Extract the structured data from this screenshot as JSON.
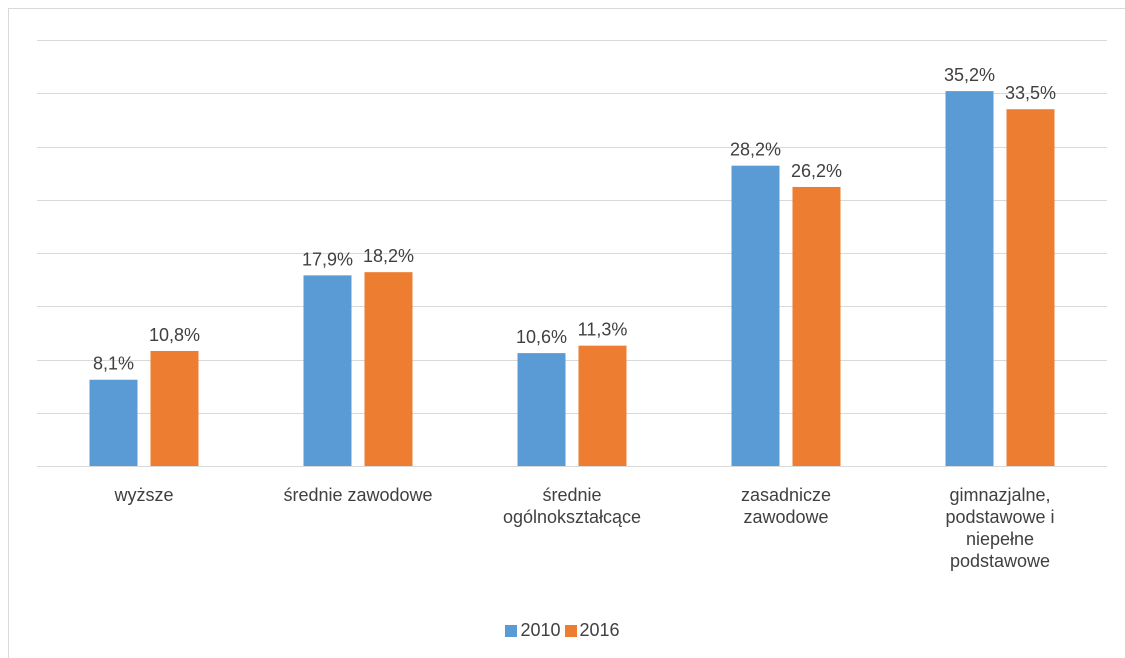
{
  "chart_data": {
    "type": "bar",
    "categories": [
      "wyższe",
      "średnie zawodowe",
      "średnie ogólnokształcące",
      "zasadnicze zawodowe",
      "gimnazjalne, podstawowe i niepełne podstawowe"
    ],
    "series": [
      {
        "name": "2010",
        "color": "#5b9bd5",
        "values": [
          8.1,
          17.9,
          10.6,
          28.2,
          35.2
        ],
        "value_labels": [
          "8,1%",
          "17,9%",
          "10,6%",
          "28,2%",
          "35,2%"
        ]
      },
      {
        "name": "2016",
        "color": "#ed7d31",
        "values": [
          10.8,
          18.2,
          11.3,
          26.2,
          33.5
        ],
        "value_labels": [
          "10,8%",
          "18,2%",
          "11,3%",
          "26,2%",
          "33,5%"
        ]
      }
    ],
    "ylim": [
      0,
      40
    ],
    "yticks": [
      0,
      5,
      10,
      15,
      20,
      25,
      30,
      35,
      40
    ],
    "grid": true,
    "legend": "bottom"
  }
}
